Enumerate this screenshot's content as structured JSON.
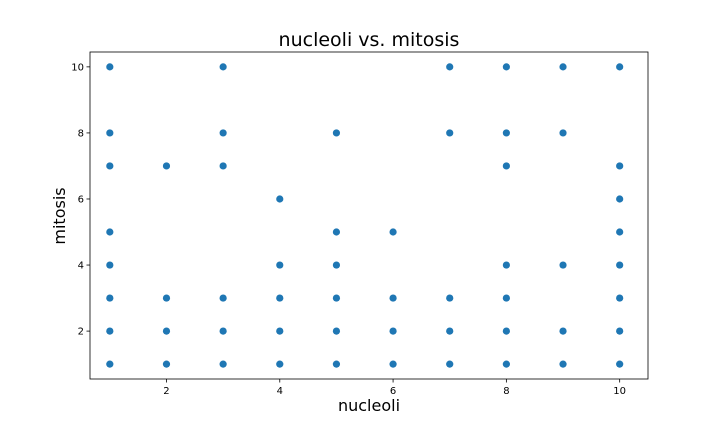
{
  "chart_data": {
    "type": "scatter",
    "title": "nucleoli vs. mitosis",
    "xlabel": "nucleoli",
    "ylabel": "mitosis",
    "xlim": [
      0.65,
      10.5
    ],
    "ylim": [
      0.55,
      10.45
    ],
    "xticks": [
      2,
      4,
      6,
      8,
      10
    ],
    "yticks": [
      2,
      4,
      6,
      8,
      10
    ],
    "grid": false,
    "marker_color": "#1f77b4",
    "points": [
      {
        "x": 1,
        "y": 10
      },
      {
        "x": 1,
        "y": 8
      },
      {
        "x": 1,
        "y": 7
      },
      {
        "x": 1,
        "y": 5
      },
      {
        "x": 1,
        "y": 4
      },
      {
        "x": 1,
        "y": 3
      },
      {
        "x": 1,
        "y": 2
      },
      {
        "x": 1,
        "y": 1
      },
      {
        "x": 2,
        "y": 7
      },
      {
        "x": 2,
        "y": 3
      },
      {
        "x": 2,
        "y": 2
      },
      {
        "x": 2,
        "y": 1
      },
      {
        "x": 3,
        "y": 10
      },
      {
        "x": 3,
        "y": 8
      },
      {
        "x": 3,
        "y": 7
      },
      {
        "x": 3,
        "y": 3
      },
      {
        "x": 3,
        "y": 2
      },
      {
        "x": 3,
        "y": 1
      },
      {
        "x": 4,
        "y": 6
      },
      {
        "x": 4,
        "y": 4
      },
      {
        "x": 4,
        "y": 3
      },
      {
        "x": 4,
        "y": 2
      },
      {
        "x": 4,
        "y": 1
      },
      {
        "x": 5,
        "y": 8
      },
      {
        "x": 5,
        "y": 5
      },
      {
        "x": 5,
        "y": 4
      },
      {
        "x": 5,
        "y": 3
      },
      {
        "x": 5,
        "y": 2
      },
      {
        "x": 5,
        "y": 1
      },
      {
        "x": 6,
        "y": 5
      },
      {
        "x": 6,
        "y": 3
      },
      {
        "x": 6,
        "y": 2
      },
      {
        "x": 6,
        "y": 1
      },
      {
        "x": 7,
        "y": 10
      },
      {
        "x": 7,
        "y": 8
      },
      {
        "x": 7,
        "y": 3
      },
      {
        "x": 7,
        "y": 2
      },
      {
        "x": 7,
        "y": 1
      },
      {
        "x": 8,
        "y": 10
      },
      {
        "x": 8,
        "y": 8
      },
      {
        "x": 8,
        "y": 7
      },
      {
        "x": 8,
        "y": 4
      },
      {
        "x": 8,
        "y": 3
      },
      {
        "x": 8,
        "y": 2
      },
      {
        "x": 8,
        "y": 1
      },
      {
        "x": 9,
        "y": 10
      },
      {
        "x": 9,
        "y": 8
      },
      {
        "x": 9,
        "y": 4
      },
      {
        "x": 9,
        "y": 2
      },
      {
        "x": 9,
        "y": 1
      },
      {
        "x": 10,
        "y": 10
      },
      {
        "x": 10,
        "y": 7
      },
      {
        "x": 10,
        "y": 6
      },
      {
        "x": 10,
        "y": 5
      },
      {
        "x": 10,
        "y": 4
      },
      {
        "x": 10,
        "y": 3
      },
      {
        "x": 10,
        "y": 2
      },
      {
        "x": 10,
        "y": 1
      }
    ]
  }
}
